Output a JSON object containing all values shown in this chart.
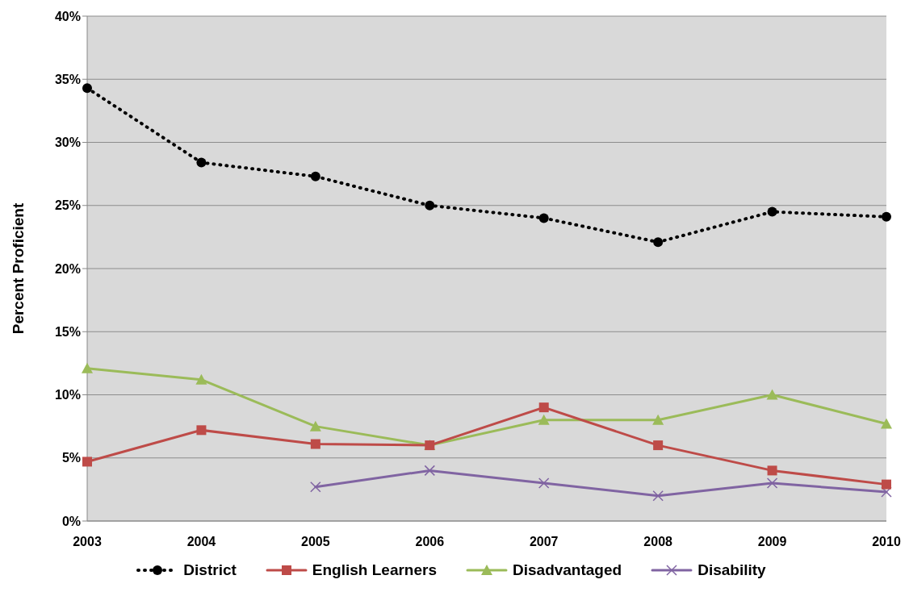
{
  "chart_data": {
    "type": "line",
    "ylabel": "Percent Proficient",
    "categories": [
      "2003",
      "2004",
      "2005",
      "2006",
      "2007",
      "2008",
      "2009",
      "2010"
    ],
    "series": [
      {
        "name": "District",
        "color": "#000000",
        "marker": "circle",
        "line_style": "dotted",
        "values": [
          34.3,
          28.4,
          27.3,
          25.0,
          24.0,
          22.1,
          24.5,
          24.1
        ]
      },
      {
        "name": "English Learners",
        "color": "#be4b48",
        "marker": "square",
        "line_style": "solid",
        "values": [
          4.7,
          7.2,
          6.1,
          6.0,
          9.0,
          6.0,
          4.0,
          2.9
        ]
      },
      {
        "name": "Disadvantaged",
        "color": "#9bbb59",
        "marker": "triangle",
        "line_style": "solid",
        "values": [
          12.1,
          11.2,
          7.5,
          6.0,
          8.0,
          8.0,
          10.0,
          7.7
        ]
      },
      {
        "name": "Disability",
        "color": "#8064a2",
        "marker": "cross",
        "line_style": "solid",
        "values": [
          null,
          null,
          2.7,
          4.0,
          3.0,
          2.0,
          3.0,
          2.3
        ]
      }
    ],
    "ylim": [
      0,
      40
    ],
    "yticks": [
      {
        "value": 0,
        "label": "0%"
      },
      {
        "value": 5,
        "label": "5%"
      },
      {
        "value": 10,
        "label": "10%"
      },
      {
        "value": 15,
        "label": "15%"
      },
      {
        "value": 20,
        "label": "20%"
      },
      {
        "value": 25,
        "label": "25%"
      },
      {
        "value": 30,
        "label": "30%"
      },
      {
        "value": 35,
        "label": "35%"
      },
      {
        "value": 40,
        "label": "40%"
      }
    ],
    "grid": "y",
    "legend": "bottom"
  }
}
